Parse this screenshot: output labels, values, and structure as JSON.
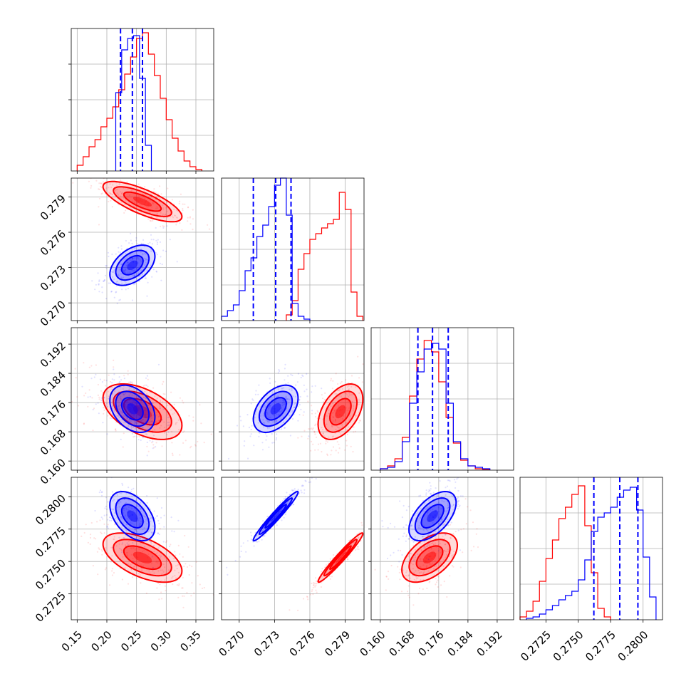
{
  "chart_data": {
    "type": "corner",
    "colors": {
      "blue": "#0000ff",
      "red": "#ff0000"
    },
    "grid": true,
    "series": [
      {
        "color": "#0000ff"
      },
      {
        "color": "#ff0000"
      }
    ],
    "params": [
      {
        "range": [
          0.14,
          0.38
        ],
        "ticks": [
          0.15,
          0.2,
          0.25,
          0.3,
          0.35
        ],
        "tick_labels": [
          "0.15",
          "0.20",
          "0.25",
          "0.30",
          "0.35"
        ]
      },
      {
        "range": [
          0.2685,
          0.2806
        ],
        "ticks": [
          0.27,
          0.273,
          0.276,
          0.279
        ],
        "tick_labels": [
          "0.270",
          "0.273",
          "0.276",
          "0.279"
        ]
      },
      {
        "range": [
          0.1575,
          0.1965
        ],
        "ticks": [
          0.16,
          0.168,
          0.176,
          0.184,
          0.192
        ],
        "tick_labels": [
          "0.160",
          "0.168",
          "0.176",
          "0.184",
          "0.192"
        ]
      },
      {
        "range": [
          0.2705,
          0.2815
        ],
        "ticks": [
          0.2725,
          0.275,
          0.2775,
          0.28
        ],
        "tick_labels": [
          "0.2725",
          "0.2750",
          "0.2775",
          "0.2800"
        ]
      }
    ],
    "marginals": [
      {
        "param": 0,
        "ymax": 1.0,
        "quantiles": [
          0.223,
          0.243,
          0.26
        ],
        "blue": {
          "edges": [
            0.215,
            0.225,
            0.235,
            0.245,
            0.255,
            0.265,
            0.275
          ],
          "counts": [
            0.55,
            0.85,
            0.93,
            0.95,
            0.65,
            0.18
          ]
        },
        "red": {
          "edges": [
            0.15,
            0.16,
            0.17,
            0.18,
            0.19,
            0.2,
            0.21,
            0.22,
            0.23,
            0.24,
            0.25,
            0.26,
            0.27,
            0.28,
            0.29,
            0.3,
            0.31,
            0.32,
            0.33,
            0.34,
            0.35,
            0.36
          ],
          "counts": [
            0.04,
            0.1,
            0.17,
            0.22,
            0.31,
            0.37,
            0.45,
            0.57,
            0.68,
            0.8,
            0.93,
            0.97,
            0.82,
            0.67,
            0.51,
            0.36,
            0.23,
            0.14,
            0.07,
            0.03,
            0.01
          ]
        }
      },
      {
        "param": 1,
        "ymax": 1.0,
        "quantiles": [
          0.2712,
          0.2731,
          0.2744
        ],
        "blue": {
          "edges": [
            0.2685,
            0.269,
            0.2695,
            0.27,
            0.2705,
            0.271,
            0.2715,
            0.272,
            0.2725,
            0.273,
            0.2735,
            0.274,
            0.2745,
            0.275,
            0.2755,
            0.276
          ],
          "counts": [
            0.03,
            0.07,
            0.11,
            0.21,
            0.35,
            0.44,
            0.59,
            0.67,
            0.8,
            0.95,
            1.0,
            0.74,
            0.12,
            0.03,
            0.01
          ]
        },
        "red": {
          "edges": [
            0.274,
            0.2745,
            0.275,
            0.2755,
            0.276,
            0.2765,
            0.277,
            0.2775,
            0.278,
            0.2785,
            0.279,
            0.2795,
            0.28,
            0.2805
          ],
          "counts": [
            0.04,
            0.14,
            0.36,
            0.47,
            0.57,
            0.61,
            0.65,
            0.68,
            0.71,
            0.9,
            0.78,
            0.2,
            0.03
          ]
        }
      },
      {
        "param": 2,
        "ymax": 1.0,
        "quantiles": [
          0.1703,
          0.1743,
          0.1786
        ],
        "blue": {
          "edges": [
            0.16,
            0.162,
            0.164,
            0.166,
            0.168,
            0.17,
            0.172,
            0.174,
            0.176,
            0.178,
            0.18,
            0.182,
            0.184,
            0.186,
            0.188,
            0.19
          ],
          "counts": [
            0.01,
            0.02,
            0.06,
            0.2,
            0.47,
            0.69,
            0.85,
            0.89,
            0.85,
            0.47,
            0.2,
            0.08,
            0.03,
            0.02,
            0.01
          ]
        },
        "red": {
          "edges": [
            0.16,
            0.162,
            0.164,
            0.166,
            0.168,
            0.17,
            0.172,
            0.174,
            0.176,
            0.178,
            0.18,
            0.182,
            0.184,
            0.186,
            0.188,
            0.19
          ],
          "counts": [
            0.01,
            0.03,
            0.08,
            0.23,
            0.52,
            0.78,
            0.91,
            0.83,
            0.62,
            0.37,
            0.19,
            0.07,
            0.03,
            0.01,
            0.005
          ]
        }
      },
      {
        "param": 3,
        "ymax": 1.0,
        "quantiles": [
          0.2762,
          0.2782,
          0.2796
        ],
        "blue": {
          "edges": [
            0.271,
            0.2715,
            0.272,
            0.2725,
            0.273,
            0.2735,
            0.274,
            0.2745,
            0.275,
            0.2755,
            0.276,
            0.2765,
            0.277,
            0.2775,
            0.278,
            0.2785,
            0.279,
            0.2795,
            0.28,
            0.2805,
            0.281
          ],
          "counts": [
            0.01,
            0.02,
            0.04,
            0.07,
            0.1,
            0.14,
            0.17,
            0.2,
            0.28,
            0.42,
            0.62,
            0.72,
            0.75,
            0.79,
            0.86,
            0.91,
            0.93,
            0.77,
            0.44,
            0.16
          ]
        },
        "red": {
          "edges": [
            0.2705,
            0.271,
            0.2715,
            0.272,
            0.2725,
            0.273,
            0.2735,
            0.274,
            0.2745,
            0.275,
            0.2755,
            0.276,
            0.2765,
            0.277,
            0.2775
          ],
          "counts": [
            0.02,
            0.06,
            0.13,
            0.27,
            0.43,
            0.56,
            0.71,
            0.79,
            0.88,
            0.94,
            0.66,
            0.33,
            0.08,
            0.02
          ]
        }
      }
    ],
    "pairs": [
      {
        "x": 0,
        "y": 1,
        "blue": {
          "center": [
            0.243,
            0.2732
          ],
          "sd": [
            0.02,
            0.0009
          ],
          "rho": 0.45
        },
        "red": {
          "center": [
            0.26,
            0.2786
          ],
          "sd": [
            0.035,
            0.0009
          ],
          "rho": -0.75
        }
      },
      {
        "x": 0,
        "y": 2,
        "blue": {
          "center": [
            0.243,
            0.1743
          ],
          "sd": [
            0.02,
            0.0034
          ],
          "rho": -0.35
        },
        "red": {
          "center": [
            0.26,
            0.1735
          ],
          "sd": [
            0.035,
            0.004
          ],
          "rho": -0.5
        }
      },
      {
        "x": 1,
        "y": 2,
        "blue": {
          "center": [
            0.2731,
            0.1743
          ],
          "sd": [
            0.001,
            0.0034
          ],
          "rho": 0.45
        },
        "red": {
          "center": [
            0.2786,
            0.1735
          ],
          "sd": [
            0.001,
            0.004
          ],
          "rho": 0.45
        }
      },
      {
        "x": 0,
        "y": 3,
        "blue": {
          "center": [
            0.243,
            0.2785
          ],
          "sd": [
            0.02,
            0.001
          ],
          "rho": -0.45
        },
        "red": {
          "center": [
            0.26,
            0.2753
          ],
          "sd": [
            0.035,
            0.001
          ],
          "rho": -0.55
        }
      },
      {
        "x": 1,
        "y": 3,
        "blue": {
          "center": [
            0.2731,
            0.2785
          ],
          "sd": [
            0.001,
            0.001
          ],
          "rho": 0.97
        },
        "red": {
          "center": [
            0.2786,
            0.2753
          ],
          "sd": [
            0.001,
            0.001
          ],
          "rho": 0.97
        }
      },
      {
        "x": 2,
        "y": 3,
        "blue": {
          "center": [
            0.1743,
            0.2785
          ],
          "sd": [
            0.0034,
            0.001
          ],
          "rho": 0.55
        },
        "red": {
          "center": [
            0.1735,
            0.2753
          ],
          "sd": [
            0.004,
            0.001
          ],
          "rho": 0.5
        }
      }
    ]
  }
}
